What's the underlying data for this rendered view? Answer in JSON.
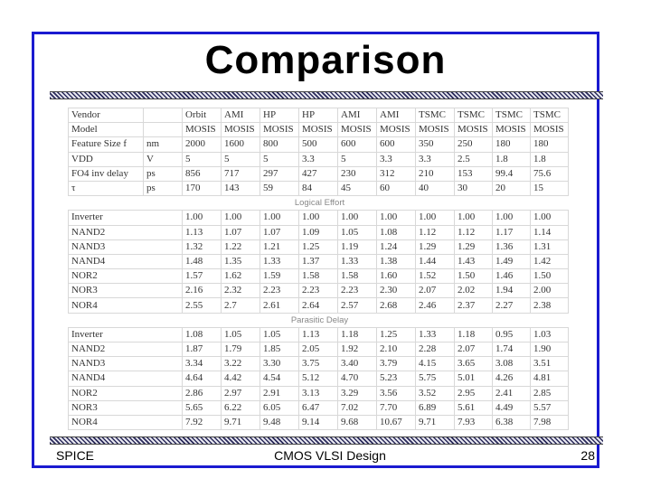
{
  "slide": {
    "title": "Comparison",
    "footer_left": "SPICE",
    "footer_center": "CMOS VLSI Design",
    "footer_right": "28"
  },
  "table": {
    "header_rows": [
      [
        "Vendor",
        "",
        "Orbit",
        "AMI",
        "HP",
        "HP",
        "AMI",
        "AMI",
        "TSMC",
        "TSMC",
        "TSMC",
        "TSMC"
      ],
      [
        "Model",
        "",
        "MOSIS",
        "MOSIS",
        "MOSIS",
        "MOSIS",
        "MOSIS",
        "MOSIS",
        "MOSIS",
        "MOSIS",
        "MOSIS",
        "MOSIS"
      ],
      [
        "Feature Size f",
        "nm",
        "2000",
        "1600",
        "800",
        "500",
        "600",
        "600",
        "350",
        "250",
        "180",
        "180"
      ],
      [
        "VDD",
        "V",
        "5",
        "5",
        "5",
        "3.3",
        "5",
        "3.3",
        "3.3",
        "2.5",
        "1.8",
        "1.8"
      ],
      [
        "FO4 inv delay",
        "ps",
        "856",
        "717",
        "297",
        "427",
        "230",
        "312",
        "210",
        "153",
        "99.4",
        "75.6"
      ],
      [
        "τ",
        "ps",
        "170",
        "143",
        "59",
        "84",
        "45",
        "60",
        "40",
        "30",
        "20",
        "15"
      ]
    ],
    "logical_effort_label": "Logical Effort",
    "logical_effort_rows": [
      [
        "Inverter",
        "1.00",
        "1.00",
        "1.00",
        "1.00",
        "1.00",
        "1.00",
        "1.00",
        "1.00",
        "1.00",
        "1.00"
      ],
      [
        "NAND2",
        "1.13",
        "1.07",
        "1.07",
        "1.09",
        "1.05",
        "1.08",
        "1.12",
        "1.12",
        "1.17",
        "1.14"
      ],
      [
        "NAND3",
        "1.32",
        "1.22",
        "1.21",
        "1.25",
        "1.19",
        "1.24",
        "1.29",
        "1.29",
        "1.36",
        "1.31"
      ],
      [
        "NAND4",
        "1.48",
        "1.35",
        "1.33",
        "1.37",
        "1.33",
        "1.38",
        "1.44",
        "1.43",
        "1.49",
        "1.42"
      ],
      [
        "NOR2",
        "1.57",
        "1.62",
        "1.59",
        "1.58",
        "1.58",
        "1.60",
        "1.52",
        "1.50",
        "1.46",
        "1.50"
      ],
      [
        "NOR3",
        "2.16",
        "2.32",
        "2.23",
        "2.23",
        "2.23",
        "2.30",
        "2.07",
        "2.02",
        "1.94",
        "2.00"
      ],
      [
        "NOR4",
        "2.55",
        "2.7",
        "2.61",
        "2.64",
        "2.57",
        "2.68",
        "2.46",
        "2.37",
        "2.27",
        "2.38"
      ]
    ],
    "parasitic_delay_label": "Parasitic Delay",
    "parasitic_delay_rows": [
      [
        "Inverter",
        "1.08",
        "1.05",
        "1.05",
        "1.13",
        "1.18",
        "1.25",
        "1.33",
        "1.18",
        "0.95",
        "1.03"
      ],
      [
        "NAND2",
        "1.87",
        "1.79",
        "1.85",
        "2.05",
        "1.92",
        "2.10",
        "2.28",
        "2.07",
        "1.74",
        "1.90"
      ],
      [
        "NAND3",
        "3.34",
        "3.22",
        "3.30",
        "3.75",
        "3.40",
        "3.79",
        "4.15",
        "3.65",
        "3.08",
        "3.51"
      ],
      [
        "NAND4",
        "4.64",
        "4.42",
        "4.54",
        "5.12",
        "4.70",
        "5.23",
        "5.75",
        "5.01",
        "4.26",
        "4.81"
      ],
      [
        "NOR2",
        "2.86",
        "2.97",
        "2.91",
        "3.13",
        "3.29",
        "3.56",
        "3.52",
        "2.95",
        "2.41",
        "2.85"
      ],
      [
        "NOR3",
        "5.65",
        "6.22",
        "6.05",
        "6.47",
        "7.02",
        "7.70",
        "6.89",
        "5.61",
        "4.49",
        "5.57"
      ],
      [
        "NOR4",
        "7.92",
        "9.71",
        "9.48",
        "9.14",
        "9.68",
        "10.67",
        "9.71",
        "7.93",
        "6.38",
        "7.98"
      ]
    ]
  }
}
